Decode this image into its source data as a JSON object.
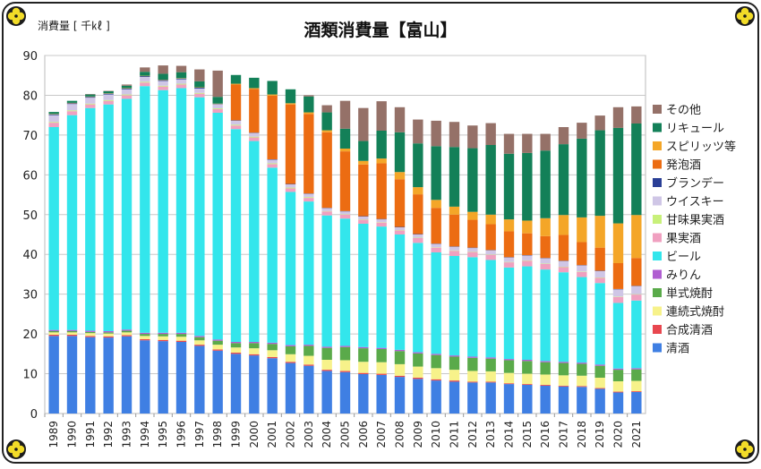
{
  "chart_data": {
    "type": "bar",
    "stacked": true,
    "title": "酒類消費量【富山】",
    "ylabel": "消費量 [ 千㎘ ]",
    "xlabel": "",
    "ylim": [
      0,
      90
    ],
    "yticks": [
      0,
      10,
      20,
      30,
      40,
      50,
      60,
      70,
      80,
      90
    ],
    "grid": true,
    "legend_position": "right",
    "categories": [
      "1989",
      "1990",
      "1991",
      "1992",
      "1993",
      "1994",
      "1995",
      "1996",
      "1997",
      "1998",
      "1999",
      "2000",
      "2001",
      "2002",
      "2003",
      "2004",
      "2005",
      "2006",
      "2007",
      "2008",
      "2009",
      "2010",
      "2011",
      "2012",
      "2013",
      "2014",
      "2015",
      "2016",
      "2017",
      "2018",
      "2019",
      "2020",
      "2021"
    ],
    "series": [
      {
        "name": "清酒",
        "color": "#3f7fe3",
        "values": [
          19.5,
          19.5,
          19.2,
          19.1,
          19.4,
          18.4,
          18.2,
          18.0,
          17.0,
          15.8,
          15.0,
          14.6,
          13.9,
          12.7,
          12.0,
          10.7,
          10.4,
          9.9,
          9.7,
          9.2,
          8.7,
          8.3,
          8.0,
          7.8,
          7.8,
          7.4,
          7.2,
          7.0,
          6.8,
          6.7,
          6.2,
          5.3,
          5.4
        ]
      },
      {
        "name": "合成清酒",
        "color": "#e8474f",
        "values": [
          0.3,
          0.3,
          0.3,
          0.3,
          0.3,
          0.3,
          0.3,
          0.3,
          0.3,
          0.3,
          0.3,
          0.3,
          0.3,
          0.3,
          0.3,
          0.3,
          0.3,
          0.3,
          0.3,
          0.3,
          0.3,
          0.3,
          0.3,
          0.2,
          0.2,
          0.2,
          0.2,
          0.2,
          0.2,
          0.2,
          0.2,
          0.2,
          0.2
        ]
      },
      {
        "name": "連続式焼酎",
        "color": "#f7f28a",
        "values": [
          0.6,
          0.6,
          0.7,
          0.7,
          0.7,
          0.8,
          0.9,
          1.0,
          1.1,
          1.2,
          1.3,
          1.5,
          1.7,
          1.9,
          2.2,
          2.5,
          2.7,
          2.8,
          2.9,
          2.9,
          2.8,
          2.8,
          2.7,
          2.7,
          2.6,
          2.6,
          2.6,
          2.6,
          2.6,
          2.6,
          2.6,
          2.6,
          2.6
        ]
      },
      {
        "name": "単式焼酎",
        "color": "#5aaa4a",
        "values": [
          0.3,
          0.3,
          0.3,
          0.3,
          0.4,
          0.5,
          0.6,
          0.7,
          0.8,
          1.0,
          1.1,
          1.3,
          1.6,
          2.0,
          2.5,
          3.0,
          3.3,
          3.4,
          3.3,
          3.3,
          3.3,
          3.3,
          3.3,
          3.3,
          3.2,
          3.2,
          3.2,
          3.1,
          3.1,
          3.0,
          3.0,
          2.9,
          2.9
        ]
      },
      {
        "name": "みりん",
        "color": "#b05ed1",
        "values": [
          0.3,
          0.3,
          0.3,
          0.3,
          0.3,
          0.3,
          0.3,
          0.3,
          0.3,
          0.3,
          0.3,
          0.3,
          0.3,
          0.3,
          0.3,
          0.3,
          0.3,
          0.3,
          0.3,
          0.3,
          0.3,
          0.3,
          0.3,
          0.3,
          0.3,
          0.3,
          0.3,
          0.3,
          0.3,
          0.3,
          0.3,
          0.3,
          0.3
        ]
      },
      {
        "name": "ビール",
        "color": "#33e6ec",
        "values": [
          51.0,
          54.0,
          56.0,
          57.0,
          58.0,
          62.0,
          61.0,
          61.5,
          60.0,
          57.0,
          53.5,
          50.5,
          44.0,
          38.5,
          36.0,
          33.0,
          32.0,
          31.0,
          30.5,
          29.0,
          27.5,
          25.5,
          25.0,
          25.0,
          24.5,
          23.0,
          23.5,
          23.0,
          22.5,
          21.5,
          20.5,
          16.5,
          17.0
        ]
      },
      {
        "name": "果実酒",
        "color": "#f0a0c0",
        "values": [
          1.1,
          1.0,
          0.9,
          0.9,
          0.9,
          0.9,
          0.9,
          0.9,
          0.9,
          0.9,
          0.9,
          0.9,
          0.9,
          0.9,
          0.9,
          1.0,
          1.0,
          1.0,
          1.0,
          1.0,
          1.2,
          1.2,
          1.3,
          1.3,
          1.3,
          1.3,
          1.4,
          1.4,
          1.3,
          1.3,
          1.3,
          1.5,
          1.5
        ]
      },
      {
        "name": "甘味果実酒",
        "color": "#c8f07a",
        "values": [
          0.2,
          0.2,
          0.2,
          0.2,
          0.2,
          0.2,
          0.2,
          0.2,
          0.2,
          0.2,
          0.2,
          0.2,
          0.2,
          0.2,
          0.2,
          0.1,
          0.1,
          0.1,
          0.1,
          0.1,
          0.1,
          0.1,
          0.1,
          0.1,
          0.1,
          0.1,
          0.1,
          0.1,
          0.1,
          0.1,
          0.1,
          0.1,
          0.1
        ]
      },
      {
        "name": "ウイスキー",
        "color": "#cfc6e6",
        "values": [
          1.7,
          1.6,
          1.5,
          1.4,
          1.3,
          1.2,
          1.2,
          1.1,
          1.1,
          1.0,
          1.0,
          0.9,
          0.9,
          0.8,
          0.8,
          0.7,
          0.7,
          0.7,
          0.7,
          0.7,
          0.8,
          0.8,
          0.9,
          0.9,
          1.0,
          1.1,
          1.2,
          1.3,
          1.4,
          1.5,
          1.6,
          1.8,
          2.0
        ]
      },
      {
        "name": "ブランデー",
        "color": "#2a3f96",
        "values": [
          0.2,
          0.2,
          0.2,
          0.2,
          0.2,
          0.2,
          0.2,
          0.2,
          0.2,
          0.1,
          0.1,
          0.1,
          0.1,
          0.1,
          0.1,
          0.1,
          0.1,
          0.1,
          0.1,
          0.1,
          0.1,
          0.1,
          0.1,
          0.1,
          0.1,
          0.1,
          0.1,
          0.1,
          0.1,
          0.1,
          0.1,
          0.1,
          0.1
        ]
      },
      {
        "name": "発泡酒",
        "color": "#ec6c12",
        "values": [
          0,
          0,
          0,
          0,
          0,
          0,
          0,
          0,
          0,
          0,
          9.0,
          11.0,
          16.0,
          20.0,
          20.0,
          19.0,
          15.0,
          13.0,
          14.0,
          12.0,
          10.0,
          9.0,
          8.0,
          7.0,
          6.5,
          6.5,
          5.5,
          5.5,
          6.5,
          5.8,
          5.8,
          6.5,
          7.0
        ]
      },
      {
        "name": "スピリッツ等",
        "color": "#f4a628",
        "values": [
          0.1,
          0.1,
          0.1,
          0.1,
          0.1,
          0.1,
          0.1,
          0.1,
          0.1,
          0.1,
          0.2,
          0.2,
          0.3,
          0.3,
          0.4,
          0.5,
          0.7,
          0.9,
          1.2,
          1.8,
          1.8,
          2.0,
          2.0,
          2.0,
          2.4,
          3.0,
          3.2,
          4.5,
          5.0,
          6.2,
          8.0,
          10.0,
          10.8
        ]
      },
      {
        "name": "リキュール",
        "color": "#138058",
        "values": [
          0.5,
          0.5,
          0.5,
          0.5,
          0.6,
          1.0,
          1.5,
          1.5,
          1.5,
          1.7,
          2.2,
          2.6,
          3.4,
          3.5,
          4.0,
          4.5,
          5.0,
          5.0,
          7.0,
          10.0,
          11.0,
          13.5,
          15.0,
          16.0,
          17.5,
          16.5,
          17.0,
          17.0,
          17.8,
          19.8,
          21.5,
          24.0,
          23.0
        ]
      },
      {
        "name": "その他",
        "color": "#957168",
        "values": [
          0,
          0,
          0.1,
          0.1,
          0.3,
          1.1,
          2.1,
          1.6,
          3.0,
          6.6,
          0,
          0,
          0,
          0,
          0.3,
          1.8,
          7.0,
          8.3,
          7.4,
          6.3,
          6.0,
          6.4,
          6.3,
          5.7,
          5.5,
          5.0,
          4.8,
          4.2,
          4.3,
          4.0,
          3.7,
          5.2,
          4.3
        ]
      }
    ]
  }
}
